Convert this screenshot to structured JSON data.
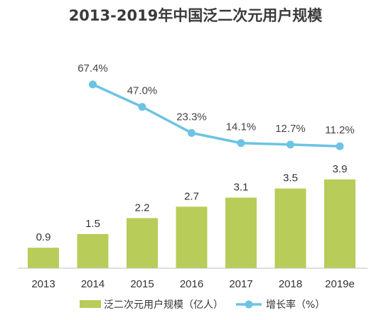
{
  "chart_data": {
    "type": "bar",
    "title": "2013-2019年中国泛二次元用户规模",
    "categories": [
      "2013",
      "2014",
      "2015",
      "2016",
      "2017",
      "2018",
      "2019e"
    ],
    "series": [
      {
        "name": "泛二次元用户规模（亿人）",
        "type": "bar",
        "values": [
          0.9,
          1.5,
          2.2,
          2.7,
          3.1,
          3.5,
          3.9
        ],
        "color": "#b8cc5a"
      },
      {
        "name": "增长率（%）",
        "type": "line",
        "values": [
          null,
          67.4,
          47.0,
          23.3,
          14.1,
          12.7,
          11.2
        ],
        "color": "#6cc3e4"
      }
    ],
    "bar_labels": [
      "0.9",
      "1.5",
      "2.2",
      "2.7",
      "3.1",
      "3.5",
      "3.9"
    ],
    "rate_labels": [
      "",
      "67.4%",
      "47.0%",
      "23.3%",
      "14.1%",
      "12.7%",
      "11.2%"
    ],
    "legend_placement": "bottom",
    "grid": false
  }
}
